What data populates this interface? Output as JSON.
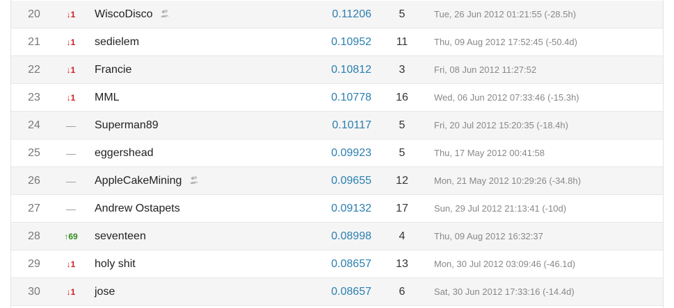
{
  "colors": {
    "score": "#2b7fb0",
    "down": "#d11c1c",
    "up": "#2e8b1e",
    "row_alt": "#f5f5f5"
  },
  "rows": [
    {
      "rank": "20",
      "delta": "↓1",
      "delta_type": "down",
      "team": "WiscoDisco",
      "team_icon": "team-members-icon",
      "score": "0.11206",
      "entries": "5",
      "last": "Tue, 26 Jun 2012 01:21:55 (-28.5h)"
    },
    {
      "rank": "21",
      "delta": "↓1",
      "delta_type": "down",
      "team": "sedielem",
      "team_icon": "",
      "score": "0.10952",
      "entries": "11",
      "last": "Thu, 09 Aug 2012 17:52:45 (-50.4d)"
    },
    {
      "rank": "22",
      "delta": "↓1",
      "delta_type": "down",
      "team": "Francie",
      "team_icon": "",
      "score": "0.10812",
      "entries": "3",
      "last": "Fri, 08 Jun 2012 11:27:52"
    },
    {
      "rank": "23",
      "delta": "↓1",
      "delta_type": "down",
      "team": "MML",
      "team_icon": "",
      "score": "0.10778",
      "entries": "16",
      "last": "Wed, 06 Jun 2012 07:33:46 (-15.3h)"
    },
    {
      "rank": "24",
      "delta": "—",
      "delta_type": "none",
      "team": "Superman89",
      "team_icon": "",
      "score": "0.10117",
      "entries": "5",
      "last": "Fri, 20 Jul 2012 15:20:35 (-18.4h)"
    },
    {
      "rank": "25",
      "delta": "—",
      "delta_type": "none",
      "team": "eggershead",
      "team_icon": "",
      "score": "0.09923",
      "entries": "5",
      "last": "Thu, 17 May 2012 00:41:58"
    },
    {
      "rank": "26",
      "delta": "—",
      "delta_type": "none",
      "team": "AppleCakeMining",
      "team_icon": "team-members-icon",
      "score": "0.09655",
      "entries": "12",
      "last": "Mon, 21 May 2012 10:29:26 (-34.8h)"
    },
    {
      "rank": "27",
      "delta": "—",
      "delta_type": "none",
      "team": "Andrew Ostapets",
      "team_icon": "",
      "score": "0.09132",
      "entries": "17",
      "last": "Sun, 29 Jul 2012 21:13:41 (-10d)"
    },
    {
      "rank": "28",
      "delta": "↑69",
      "delta_type": "up",
      "team": "seventeen",
      "team_icon": "",
      "score": "0.08998",
      "entries": "4",
      "last": "Thu, 09 Aug 2012 16:32:37"
    },
    {
      "rank": "29",
      "delta": "↓1",
      "delta_type": "down",
      "team": "holy shit",
      "team_icon": "",
      "score": "0.08657",
      "entries": "13",
      "last": "Mon, 30 Jul 2012 03:09:46 (-46.1d)"
    },
    {
      "rank": "30",
      "delta": "↓1",
      "delta_type": "down",
      "team": "jose",
      "team_icon": "",
      "score": "0.08657",
      "entries": "6",
      "last": "Sat, 30 Jun 2012 17:33:16 (-14.4d)"
    }
  ]
}
